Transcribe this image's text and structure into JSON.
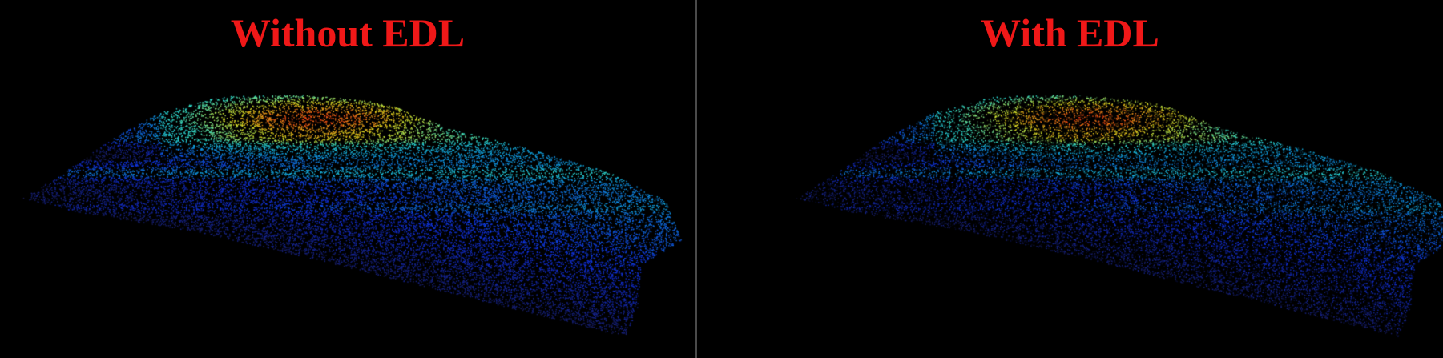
{
  "panels": [
    {
      "title": "Without EDL",
      "edl": false
    },
    {
      "title": "With EDL",
      "edl": true
    }
  ],
  "colors": {
    "background": "#000000",
    "title": "#f01818",
    "divider": "#4a4a4a",
    "colormap": [
      "#1a1a4a",
      "#1030e0",
      "#10a0e0",
      "#30e0d0",
      "#e0e020",
      "#ff2010",
      "#ffe0e0"
    ]
  }
}
